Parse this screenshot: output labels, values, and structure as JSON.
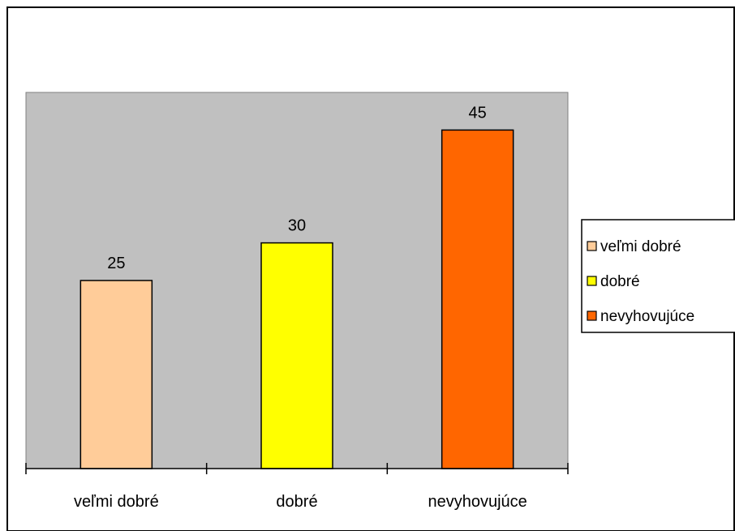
{
  "chart_data": {
    "type": "bar",
    "categories": [
      "veľmi dobré",
      "dobré",
      "nevyhovujúce"
    ],
    "values": [
      25,
      30,
      45
    ],
    "colors": [
      "#FFCC99",
      "#FFFF00",
      "#FF6600"
    ],
    "data_labels": [
      "25",
      "30",
      "45"
    ],
    "ylim": [
      0,
      50
    ],
    "plot_background": "#C0C0C0",
    "grid": false,
    "legend_position": "right",
    "legend": [
      {
        "label": "veľmi dobré",
        "color": "#FFCC99"
      },
      {
        "label": "dobré",
        "color": "#FFFF00"
      },
      {
        "label": "nevyhovujúce",
        "color": "#FF6600"
      }
    ]
  }
}
